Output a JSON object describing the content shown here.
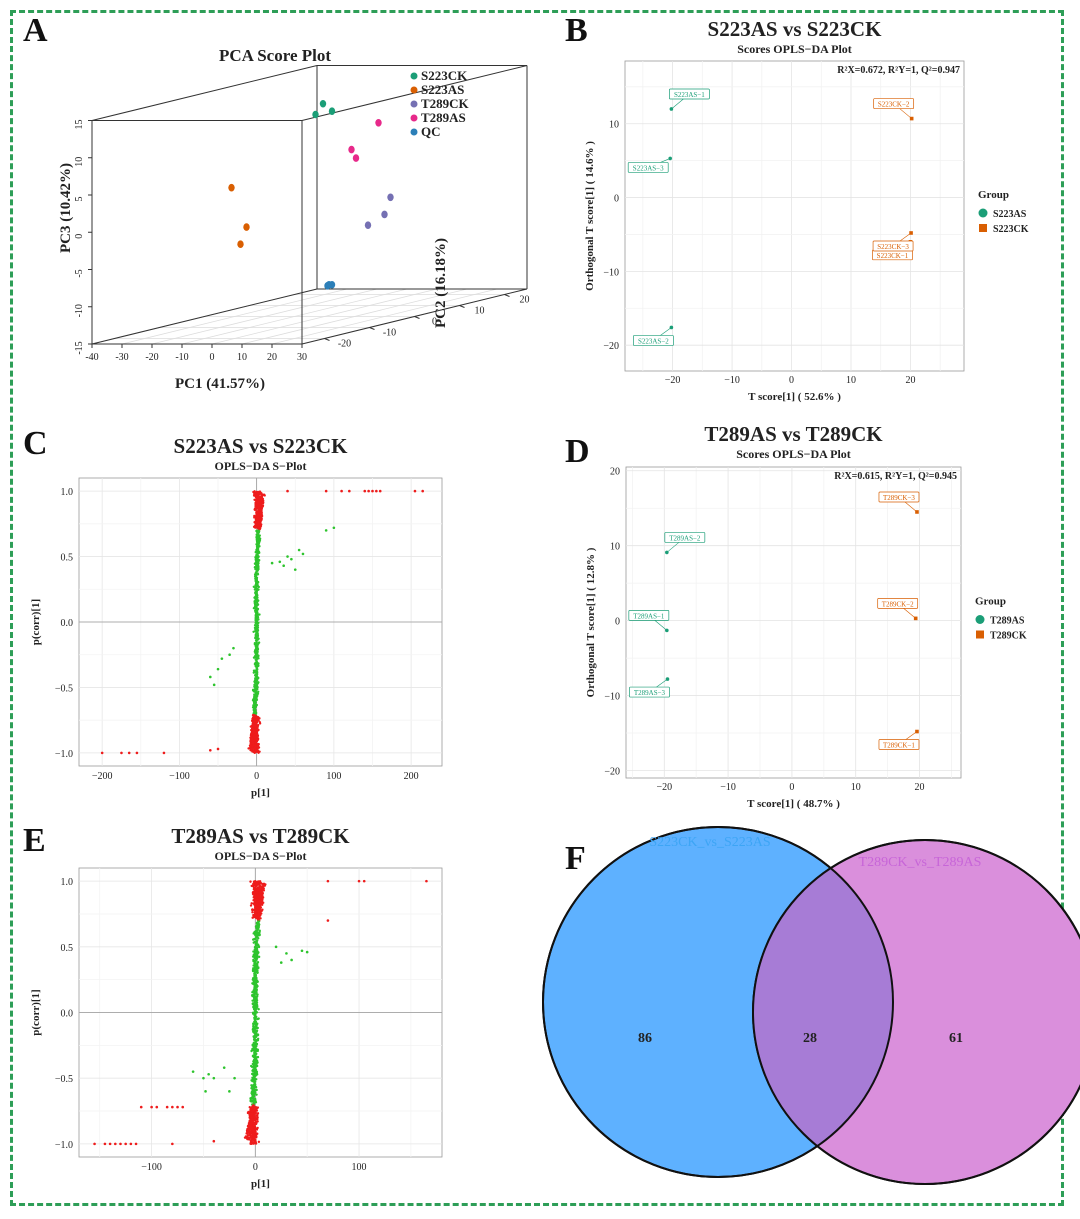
{
  "colors": {
    "frame": "#2e9e57",
    "s223ck": "#1b9e77",
    "s223as": "#d95f02",
    "t289ck": "#7570b3",
    "t289as": "#e7298a",
    "qc": "#2c7fb8",
    "splot_red": "#ee1c1c",
    "splot_green": "#2ec42e",
    "venn_left": "#5eb1ff",
    "venn_right": "#da8fdc",
    "venn_overlap": "#a77cd6",
    "venn_left_label": "#3da5f5",
    "venn_right_label": "#c765d8"
  },
  "panels": {
    "A": "A",
    "B": "B",
    "C": "C",
    "D": "D",
    "E": "E",
    "F": "F"
  },
  "chart_data": [
    {
      "id": "A",
      "type": "scatter",
      "title": "PCA Score Plot",
      "xlabel": "PC1 (41.57%)",
      "ylabel": "PC2 (16.18%)",
      "zlabel": "PC3 (10.42%)",
      "x_ticks": [
        "-40",
        "-30",
        "-20",
        "-10",
        "0",
        "10",
        "20",
        "30"
      ],
      "y_ticks": [
        "-20",
        "-10",
        "0",
        "10",
        "20"
      ],
      "z_ticks": [
        "-15",
        "-10",
        "-5",
        "0",
        "5",
        "10",
        "15"
      ],
      "legend": [
        "S223CK",
        "S223AS",
        "T289CK",
        "T289AS",
        "QC"
      ],
      "series": [
        {
          "name": "S223CK",
          "points": [
            [
              4,
              -3,
              14
            ],
            [
              7,
              -3,
              13
            ],
            [
              6,
              -6,
              13
            ]
          ]
        },
        {
          "name": "S223AS",
          "points": [
            [
              -34,
              2,
              2
            ],
            [
              -26,
              0,
              -3
            ],
            [
              -25,
              -2,
              -5
            ]
          ]
        },
        {
          "name": "T289CK",
          "points": [
            [
              22,
              0,
              1
            ],
            [
              23,
              -2,
              -1
            ],
            [
              22,
              -5,
              -2
            ]
          ]
        },
        {
          "name": "T289AS",
          "points": [
            [
              18,
              0,
              11
            ],
            [
              15,
              -4,
              8
            ],
            [
              18,
              -5,
              7
            ]
          ]
        },
        {
          "name": "QC",
          "points": [
            [
              9,
              -5,
              -10
            ],
            [
              10,
              -5,
              -10
            ],
            [
              10,
              -6,
              -10
            ]
          ]
        }
      ]
    },
    {
      "id": "B",
      "type": "scatter",
      "title": "S223AS vs S223CK",
      "subtitle": "Scores OPLS−DA Plot",
      "annotation": "R²X=0.672, R²Y=1, Q²=0.947",
      "xlabel": "T score[1] ( 52.6% )",
      "ylabel": "Orthogonal T score[1] ( 14.6% )",
      "xlim": [
        -28,
        29
      ],
      "ylim": [
        -23.5,
        18.5
      ],
      "x_ticks": [
        -20,
        -10,
        0,
        10,
        20
      ],
      "y_ticks": [
        -20,
        -10,
        0,
        10
      ],
      "legend_title": "Group",
      "legend": [
        "S223AS",
        "S223CK"
      ],
      "series": [
        {
          "name": "S223AS",
          "points": [
            {
              "x": -20.2,
              "y": 12.0,
              "label": "S223AS−1"
            },
            {
              "x": -20.2,
              "y": -17.6,
              "label": "S223AS−2"
            },
            {
              "x": -20.4,
              "y": 5.3,
              "label": "S223AS−3"
            }
          ]
        },
        {
          "name": "S223CK",
          "points": [
            {
              "x": 20.0,
              "y": -6.0,
              "label": "S223CK−1"
            },
            {
              "x": 20.2,
              "y": 10.7,
              "label": "S223CK−2"
            },
            {
              "x": 20.1,
              "y": -4.8,
              "label": "S223CK−3"
            }
          ]
        }
      ]
    },
    {
      "id": "C",
      "type": "scatter",
      "title": "S223AS vs S223CK",
      "subtitle": "OPLS−DA S−Plot",
      "xlabel": "p[1]",
      "ylabel": "p(corr)[1]",
      "xlim": [
        -230,
        240
      ],
      "ylim": [
        -1.1,
        1.1
      ],
      "x_ticks": [
        -200,
        -100,
        0,
        100,
        200
      ],
      "y_ticks": [
        -1.0,
        -0.5,
        0.0,
        0.5,
        1.0
      ],
      "outliers_red": [
        [
          -200,
          -1
        ],
        [
          -175,
          -1
        ],
        [
          -165,
          -1
        ],
        [
          -155,
          -1
        ],
        [
          -120,
          -1
        ],
        [
          -60,
          -0.98
        ],
        [
          -50,
          -0.97
        ],
        [
          40,
          1
        ],
        [
          90,
          1
        ],
        [
          110,
          1
        ],
        [
          120,
          1
        ],
        [
          140,
          1
        ],
        [
          145,
          1
        ],
        [
          150,
          1
        ],
        [
          155,
          1
        ],
        [
          160,
          1
        ],
        [
          205,
          1
        ],
        [
          215,
          1
        ]
      ],
      "outliers_green": [
        [
          -60,
          -0.42
        ],
        [
          -55,
          -0.48
        ],
        [
          -50,
          -0.36
        ],
        [
          -45,
          -0.28
        ],
        [
          -35,
          -0.25
        ],
        [
          -30,
          -0.2
        ],
        [
          30,
          0.46
        ],
        [
          40,
          0.5
        ],
        [
          45,
          0.48
        ],
        [
          55,
          0.55
        ],
        [
          60,
          0.52
        ],
        [
          35,
          0.43
        ],
        [
          50,
          0.4
        ],
        [
          90,
          0.7
        ],
        [
          100,
          0.72
        ],
        [
          20,
          0.45
        ]
      ]
    },
    {
      "id": "D",
      "type": "scatter",
      "title": "T289AS vs T289CK",
      "subtitle": "Scores OPLS−DA Plot",
      "annotation": "R²X=0.615, R²Y=1, Q²=0.945",
      "xlabel": "T score[1] ( 48.7% )",
      "ylabel": "Orthogonal T score[1] ( 12.8% )",
      "xlim": [
        -26,
        26.5
      ],
      "ylim": [
        -21,
        20.5
      ],
      "x_ticks": [
        -20,
        -10,
        0,
        10,
        20
      ],
      "y_ticks": [
        -20,
        -10,
        0,
        10,
        20
      ],
      "legend_title": "Group",
      "legend": [
        "T289AS",
        "T289CK"
      ],
      "series": [
        {
          "name": "T289AS",
          "points": [
            {
              "x": -19.6,
              "y": -1.3,
              "label": "T289AS−1"
            },
            {
              "x": -19.6,
              "y": 9.1,
              "label": "T289AS−2"
            },
            {
              "x": -19.5,
              "y": -7.8,
              "label": "T289AS−3"
            }
          ]
        },
        {
          "name": "T289CK",
          "points": [
            {
              "x": 19.6,
              "y": -14.8,
              "label": "T289CK−1"
            },
            {
              "x": 19.4,
              "y": 0.3,
              "label": "T289CK−2"
            },
            {
              "x": 19.6,
              "y": 14.5,
              "label": "T289CK−3"
            }
          ]
        }
      ]
    },
    {
      "id": "E",
      "type": "scatter",
      "title": "T289AS vs T289CK",
      "subtitle": "OPLS−DA S−Plot",
      "xlabel": "p[1]",
      "ylabel": "p(corr)[1]",
      "xlim": [
        -170,
        180
      ],
      "ylim": [
        -1.1,
        1.1
      ],
      "x_ticks": [
        -100,
        0,
        100
      ],
      "y_ticks": [
        -1.0,
        -0.5,
        0.0,
        0.5,
        1.0
      ],
      "outliers_red": [
        [
          -155,
          -1
        ],
        [
          -145,
          -1
        ],
        [
          -140,
          -1
        ],
        [
          -135,
          -1
        ],
        [
          -130,
          -1
        ],
        [
          -125,
          -1
        ],
        [
          -120,
          -1
        ],
        [
          -115,
          -1
        ],
        [
          -80,
          -1
        ],
        [
          -40,
          -0.98
        ],
        [
          -110,
          -0.72
        ],
        [
          -100,
          -0.72
        ],
        [
          -95,
          -0.72
        ],
        [
          -85,
          -0.72
        ],
        [
          -80,
          -0.72
        ],
        [
          -75,
          -0.72
        ],
        [
          -70,
          -0.72
        ],
        [
          70,
          1
        ],
        [
          100,
          1
        ],
        [
          105,
          1
        ],
        [
          165,
          1
        ],
        [
          70,
          0.7
        ]
      ],
      "outliers_green": [
        [
          -60,
          -0.45
        ],
        [
          -50,
          -0.5
        ],
        [
          -45,
          -0.47
        ],
        [
          -40,
          -0.5
        ],
        [
          -48,
          -0.6
        ],
        [
          -30,
          -0.42
        ],
        [
          -25,
          -0.6
        ],
        [
          -20,
          -0.5
        ],
        [
          25,
          0.38
        ],
        [
          30,
          0.45
        ],
        [
          35,
          0.4
        ],
        [
          45,
          0.47
        ],
        [
          50,
          0.46
        ],
        [
          20,
          0.5
        ]
      ]
    },
    {
      "id": "F",
      "type": "venn",
      "sets": [
        {
          "name": "S223CK_vs_S223AS",
          "only": 86
        },
        {
          "name": "T289CK_vs_T289AS",
          "only": 61
        }
      ],
      "overlap": 28
    }
  ]
}
